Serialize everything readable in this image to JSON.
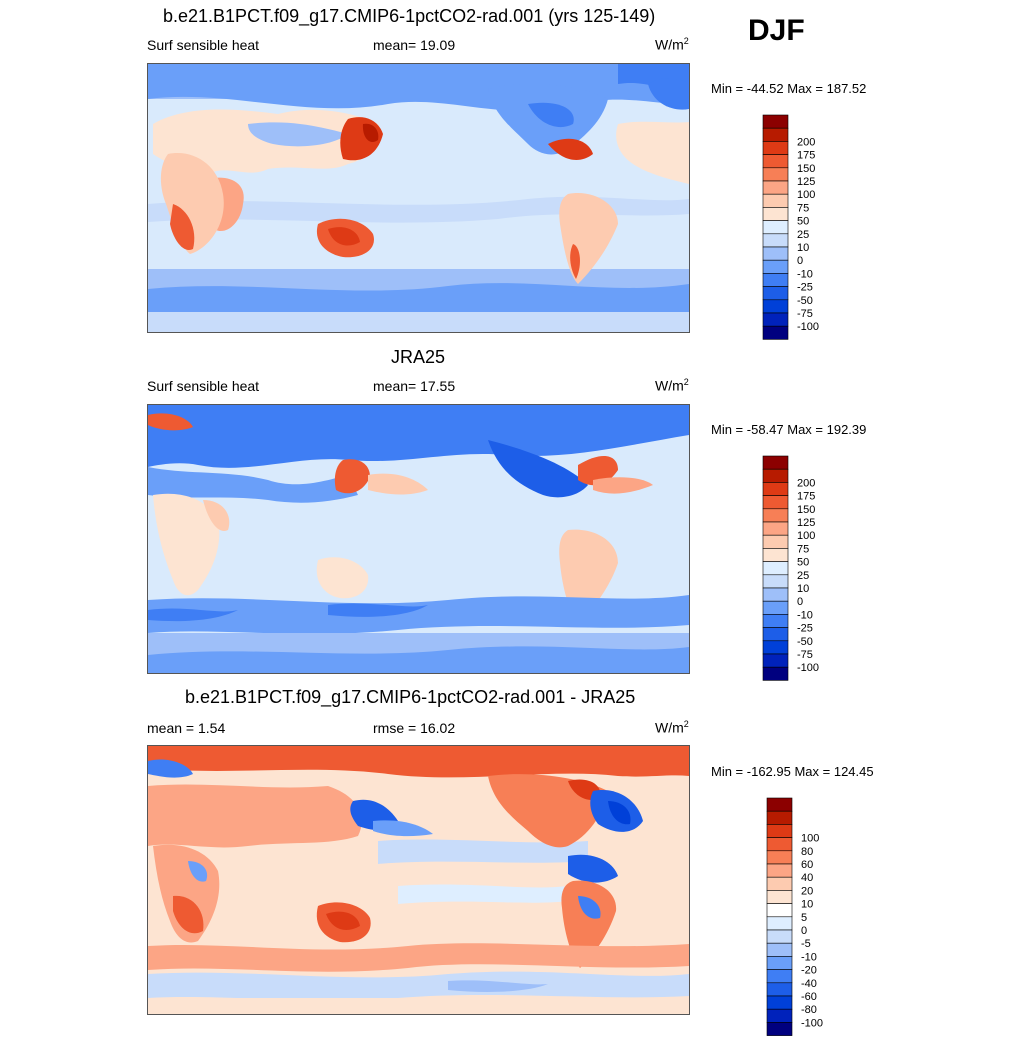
{
  "season": "DJF",
  "palettes": {
    "abs": [
      "#00007f",
      "#0022bb",
      "#0040d8",
      "#1d5ee8",
      "#3f7ef4",
      "#6a9ff9",
      "#9ebff9",
      "#c8dcfa",
      "#deeeff",
      "#fde4d2",
      "#fdcbb0",
      "#fca585",
      "#f77f56",
      "#ee5a32",
      "#de3a15",
      "#b71b00",
      "#8c0000"
    ],
    "diff": [
      "#00007f",
      "#0022bb",
      "#0040d8",
      "#1d5ee8",
      "#3f7ef4",
      "#6a9ff9",
      "#9ebff9",
      "#c8dcfa",
      "#deeeff",
      "#ffffff",
      "#fde4d2",
      "#fdcbb0",
      "#fca585",
      "#f77f56",
      "#ee5a32",
      "#de3a15",
      "#b71b00",
      "#8c0000"
    ]
  },
  "panels": [
    {
      "title": "b.e21.B1PCT.f09_g17.CMIP6-1pctCO2-rad.001 (yrs 125-149)",
      "left_label": "Surf sensible heat",
      "center_label": "mean=  19.09",
      "units_base": "W/m",
      "units_sup": "2",
      "minmax": "Min = -44.52 Max = 187.52",
      "colorbar": {
        "type": "abs",
        "levels": [
          "200",
          "175",
          "150",
          "125",
          "100",
          "75",
          "50",
          "25",
          "10",
          "0",
          "-10",
          "-25",
          "-50",
          "-75",
          "-100"
        ]
      }
    },
    {
      "title": "JRA25",
      "left_label": "Surf sensible heat",
      "center_label": "mean=  17.55",
      "units_base": "W/m",
      "units_sup": "2",
      "minmax": "Min = -58.47 Max = 192.39",
      "colorbar": {
        "type": "abs",
        "levels": [
          "200",
          "175",
          "150",
          "125",
          "100",
          "75",
          "50",
          "25",
          "10",
          "0",
          "-10",
          "-25",
          "-50",
          "-75",
          "-100"
        ]
      }
    },
    {
      "title": "b.e21.B1PCT.f09_g17.CMIP6-1pctCO2-rad.001 - JRA25",
      "left_label": "mean =   1.54",
      "center_label": "rmse =  16.02",
      "units_base": "W/m",
      "units_sup": "2",
      "minmax": "Min = -162.95 Max = 124.45",
      "colorbar": {
        "type": "diff",
        "levels": [
          "100",
          "80",
          "60",
          "40",
          "20",
          "10",
          "5",
          "0",
          "-5",
          "-10",
          "-20",
          "-40",
          "-60",
          "-80",
          "-100"
        ]
      }
    }
  ]
}
